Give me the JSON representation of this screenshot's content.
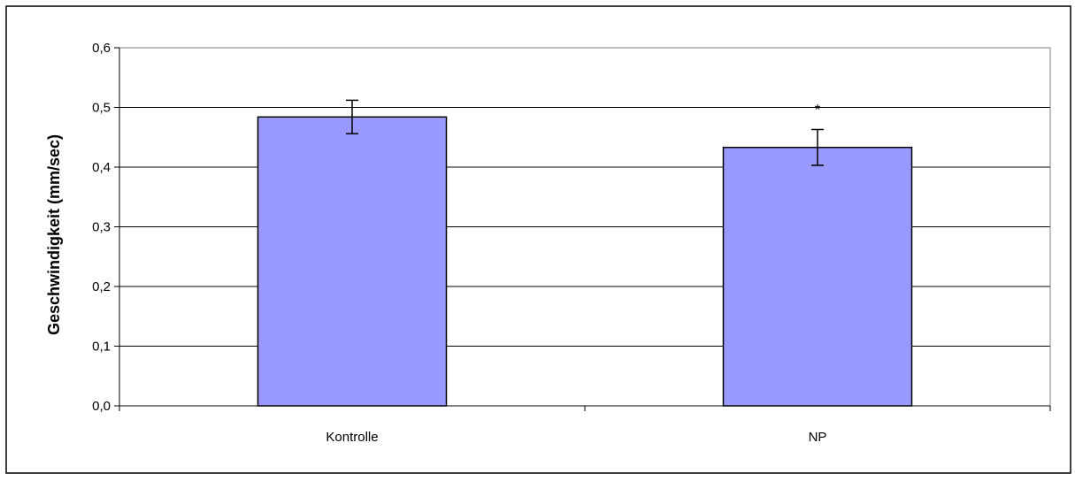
{
  "chart_data": {
    "type": "bar",
    "categories": [
      "Kontrolle",
      "NP"
    ],
    "values": [
      0.484,
      0.433
    ],
    "error_bars": [
      0.028,
      0.03
    ],
    "ylabel": "Geschwindigkeit (mm/sec)",
    "xlabel": "",
    "ylim": [
      0,
      0.6
    ],
    "yticks": [
      0.0,
      0.1,
      0.2,
      0.3,
      0.4,
      0.5,
      0.6
    ],
    "ytick_labels": [
      "0,0",
      "0,1",
      "0,2",
      "0,3",
      "0,4",
      "0,5",
      "0,6"
    ],
    "annotations": [
      "",
      "*"
    ],
    "grid": true,
    "bar_color": "#9999ff",
    "plot_background": "#ffffff",
    "gridline_color": "#000000"
  }
}
